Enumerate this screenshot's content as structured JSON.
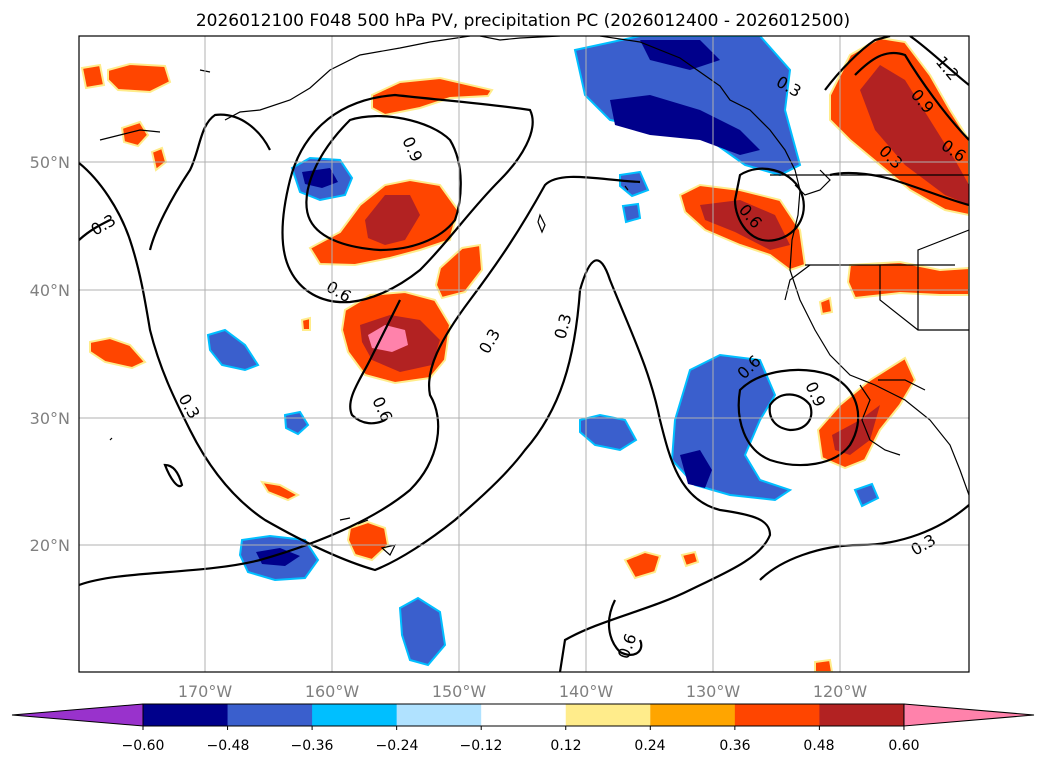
{
  "title": "2026012100 F048 500 hPa PV, precipitation PC (2026012400 - 2026012500)",
  "map": {
    "lon_labels": [
      "170°W",
      "160°W",
      "150°W",
      "140°W",
      "130°W",
      "120°W"
    ],
    "lat_labels": [
      "50°N",
      "40°N",
      "30°N",
      "20°N"
    ],
    "contour_labels": [
      "0.3",
      "0.6",
      "0.9",
      "1.2"
    ],
    "grid": true,
    "land_outline_color": "#000000",
    "contour_color": "#000000"
  },
  "colorbar": {
    "ticks": [
      "−0.60",
      "−0.48",
      "−0.36",
      "−0.24",
      "−0.12",
      "0.12",
      "0.24",
      "0.36",
      "0.48",
      "0.60"
    ],
    "colors": [
      "#9932CC",
      "#00008B",
      "#3A5FCD",
      "#00BFFF",
      "#B0E2FF",
      "#FFFFFF",
      "#FFEC8B",
      "#FFA500",
      "#FF4500",
      "#B22222",
      "#FF82AB"
    ],
    "extend": "both"
  }
}
